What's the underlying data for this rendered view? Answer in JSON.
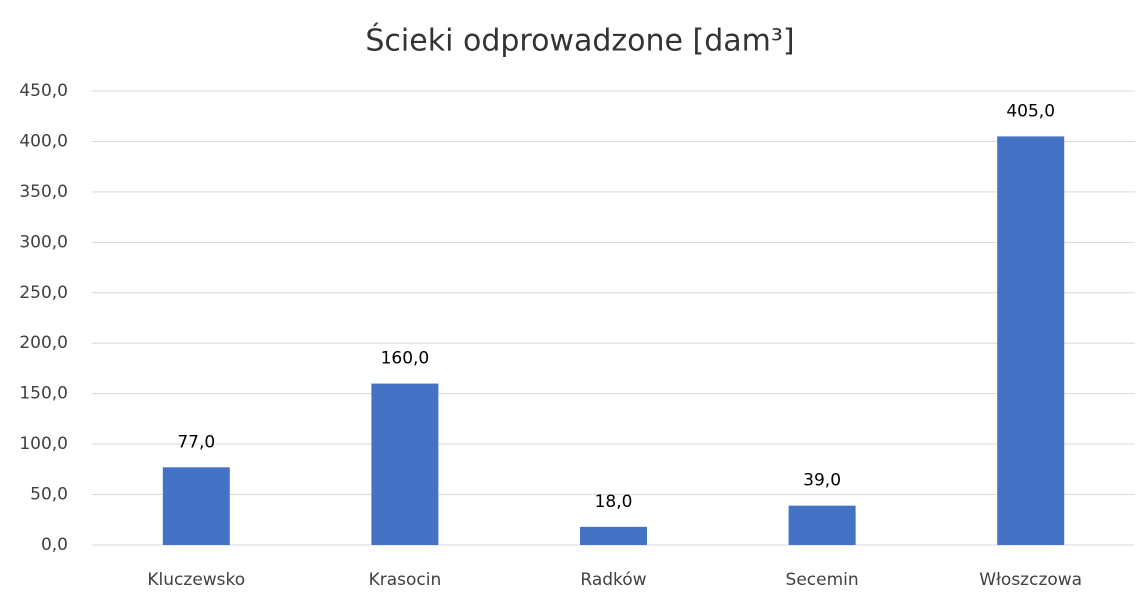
{
  "chart_data": {
    "type": "bar",
    "title": "Ścieki odprowadzone [dam³]",
    "categories": [
      "Kluczewsko",
      "Krasocin",
      "Radków",
      "Secemin",
      "Włoszczowa"
    ],
    "values": [
      77,
      160,
      18,
      39,
      405
    ],
    "value_labels": [
      "77,0",
      "160,0",
      "18,0",
      "39,0",
      "405,0"
    ],
    "color": "#4472c4",
    "ylim": [
      0,
      450
    ],
    "yticks": [
      {
        "value": 0,
        "label": "0,0"
      },
      {
        "value": 50,
        "label": "50,0"
      },
      {
        "value": 100,
        "label": "100,0"
      },
      {
        "value": 150,
        "label": "150,0"
      },
      {
        "value": 200,
        "label": "200,0"
      },
      {
        "value": 250,
        "label": "250,0"
      },
      {
        "value": 300,
        "label": "300,0"
      },
      {
        "value": 350,
        "label": "350,0"
      },
      {
        "value": 400,
        "label": "400,0"
      },
      {
        "value": 450,
        "label": "450,0"
      }
    ],
    "grid": true
  }
}
